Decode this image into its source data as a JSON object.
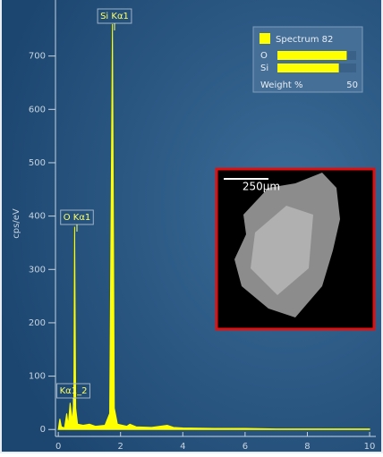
{
  "chart_data": {
    "type": "area",
    "y_label": "cps/eV",
    "color": "#ffff00",
    "x": [
      0,
      0.05,
      0.1,
      0.2,
      0.27,
      0.32,
      0.38,
      0.45,
      0.5,
      0.525,
      0.56,
      0.62,
      0.8,
      1.0,
      1.2,
      1.5,
      1.65,
      1.74,
      1.8,
      1.9,
      2.2,
      2.3,
      2.5,
      3.0,
      3.5,
      3.7,
      4.0,
      5,
      6,
      7,
      8,
      9,
      10
    ],
    "values": [
      0,
      20,
      5,
      3,
      30,
      8,
      50,
      15,
      60,
      380,
      40,
      10,
      8,
      10,
      6,
      8,
      30,
      760,
      40,
      10,
      6,
      10,
      5,
      4,
      8,
      4,
      3,
      2,
      2,
      1,
      1,
      1,
      1
    ],
    "xlim": [
      -0.09,
      10.2
    ],
    "ylim": [
      -13,
      805
    ],
    "xticks": [
      0,
      2,
      4,
      6,
      8,
      10
    ],
    "yticks": [
      0,
      100,
      200,
      300,
      400,
      500,
      600,
      700
    ],
    "annotations": [
      "Si Kα1",
      "O Kα1",
      "Kα1_2"
    ],
    "legend": {
      "title": "Spectrum 82",
      "scale_label": "Weight %",
      "scale_max": 50,
      "elements": [
        {
          "name": "O",
          "value": 44
        },
        {
          "name": "Si",
          "value": 39
        }
      ]
    },
    "inset": {
      "scale_label": "250µm"
    }
  }
}
